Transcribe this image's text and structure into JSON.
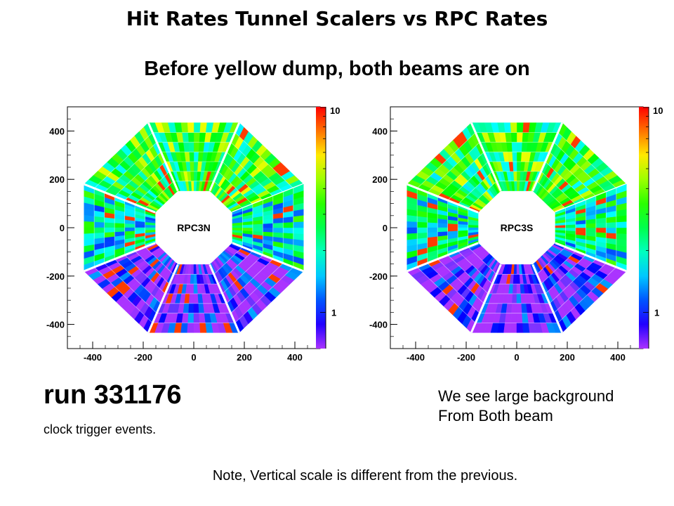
{
  "slide": {
    "title": "Hit Rates Tunnel Scalers vs RPC Rates",
    "subtitle": "Before yellow dump, both beams are on",
    "run_text": "run 331176",
    "trigger_text": "clock trigger events.",
    "background_line1": "We see large background",
    "background_line2": "From Both beam",
    "note": "Note, Vertical scale is different from the previous."
  },
  "chart_data": [
    {
      "type": "heatmap",
      "detector": "RPC3N",
      "x_ticks": [
        "-400",
        "-200",
        "0",
        "200",
        "400"
      ],
      "y_ticks": [
        "400",
        "200",
        "0",
        "-200",
        "-400"
      ],
      "xlim": [
        -500,
        500
      ],
      "ylim": [
        -500,
        500
      ],
      "colorbar": {
        "min_label": "1",
        "max_label": "10",
        "scale": "log"
      },
      "colors": {
        "low": "#8a2be2",
        "mid": "#22cc22",
        "high": "#ee1111"
      }
    },
    {
      "type": "heatmap",
      "detector": "RPC3S",
      "x_ticks": [
        "-400",
        "-200",
        "0",
        "200",
        "400"
      ],
      "y_ticks": [
        "400",
        "200",
        "0",
        "-200",
        "-400"
      ],
      "xlim": [
        -500,
        500
      ],
      "ylim": [
        -500,
        500
      ],
      "colorbar": {
        "min_label": "1",
        "max_label": "10",
        "scale": "log"
      },
      "colors": {
        "low": "#8a2be2",
        "mid": "#22cc22",
        "high": "#ee1111"
      }
    }
  ]
}
